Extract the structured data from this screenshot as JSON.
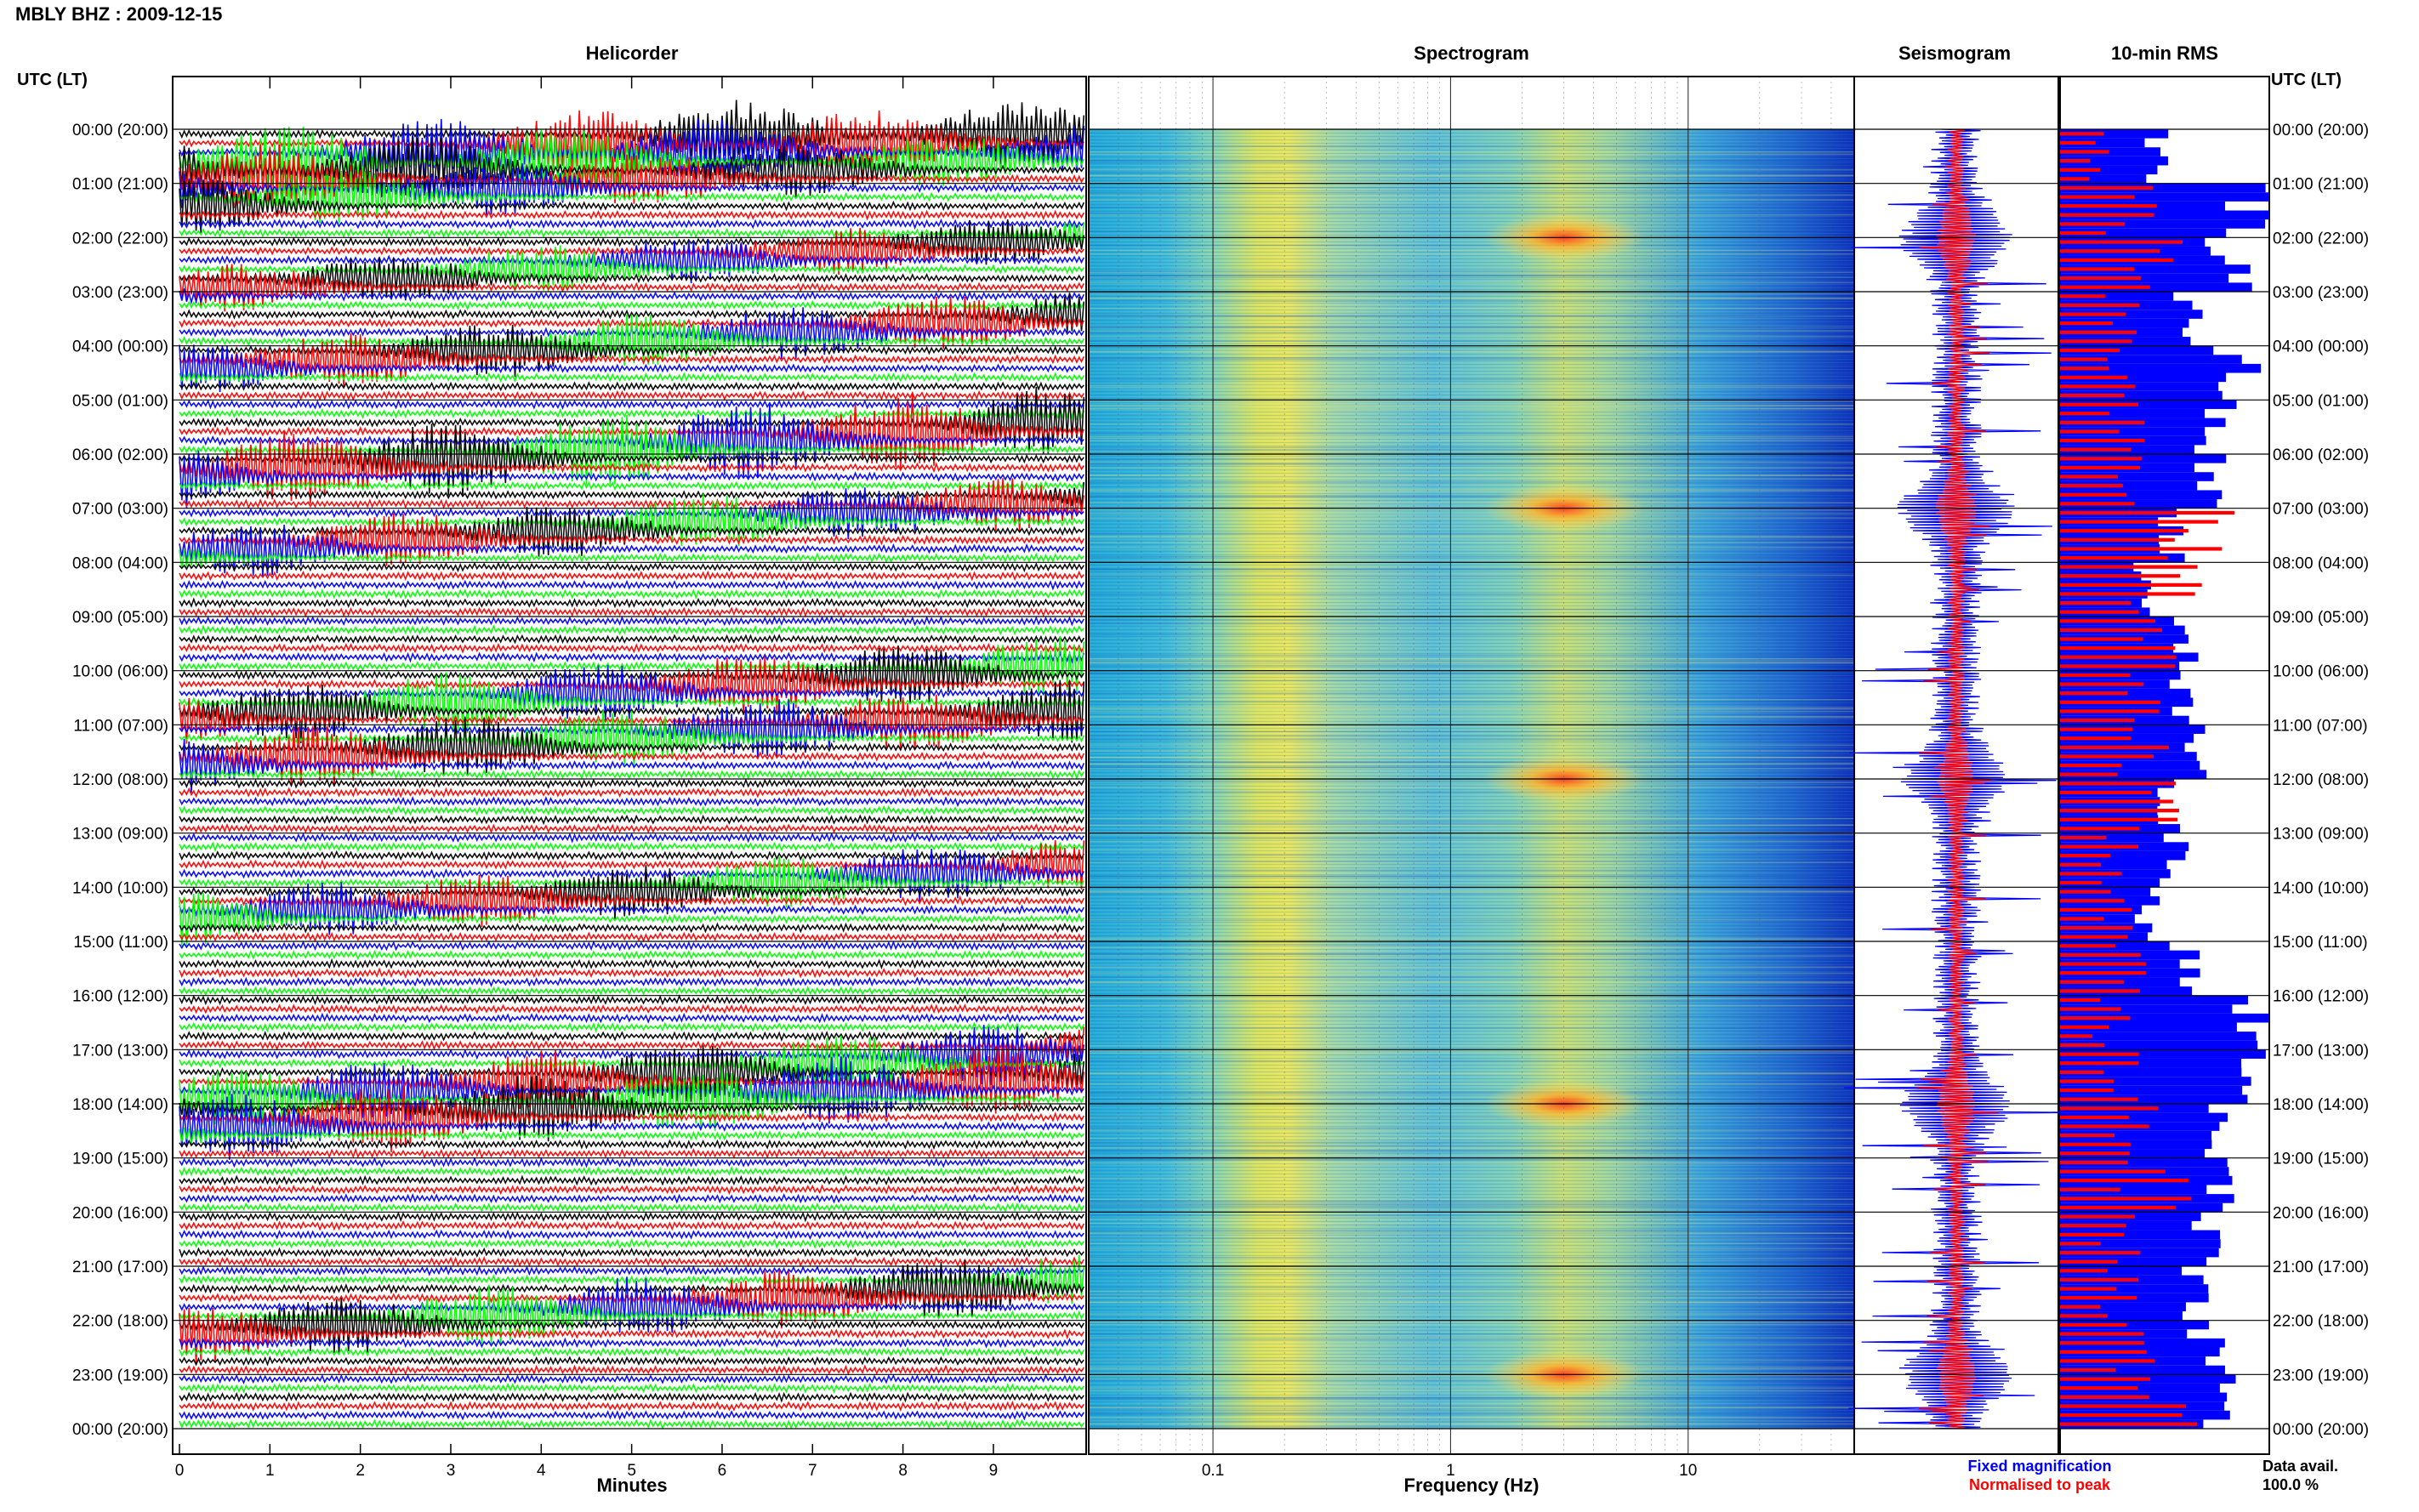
{
  "station_title": "MBLY BHZ : 2009-12-15",
  "panels": {
    "helicorder": "Helicorder",
    "spectrogram": "Spectrogram",
    "seismogram": "Seismogram",
    "rms": "10-min RMS"
  },
  "time_axis": {
    "header": "UTC (LT)",
    "labels": [
      "00:00 (20:00)",
      "01:00 (21:00)",
      "02:00 (22:00)",
      "03:00 (23:00)",
      "04:00 (00:00)",
      "05:00 (01:00)",
      "06:00 (02:00)",
      "07:00 (03:00)",
      "08:00 (04:00)",
      "09:00 (05:00)",
      "10:00 (06:00)",
      "11:00 (07:00)",
      "12:00 (08:00)",
      "13:00 (09:00)",
      "14:00 (10:00)",
      "15:00 (11:00)",
      "16:00 (12:00)",
      "17:00 (13:00)",
      "18:00 (14:00)",
      "19:00 (15:00)",
      "20:00 (16:00)",
      "21:00 (17:00)",
      "22:00 (18:00)",
      "23:00 (19:00)",
      "00:00 (20:00)"
    ]
  },
  "helicorder_axis": {
    "xlabel": "Minutes",
    "ticks": [
      "0",
      "1",
      "2",
      "3",
      "4",
      "5",
      "6",
      "7",
      "8",
      "9"
    ]
  },
  "spectrogram_axis": {
    "xlabel": "Frequency (Hz)",
    "ticks": [
      "0.1",
      "1",
      "10"
    ]
  },
  "legend": {
    "fixed": "Fixed magnification",
    "normalised": "Normalised to peak",
    "fixed_color": "#0000ff",
    "normalised_color": "#ff0000"
  },
  "data_availability": {
    "label": "Data avail.",
    "value": "100.0 %"
  },
  "colors": {
    "trace_cycle": [
      "#000000",
      "#ff0000",
      "#0000ff",
      "#00ff00"
    ],
    "rms_fill": "#0000ff",
    "rms_norm": "#ff0000"
  },
  "chart_data": [
    {
      "type": "line",
      "title": "Helicorder",
      "xlabel": "Minutes",
      "x_range": [
        0,
        10
      ],
      "rows_per_hour": 6,
      "hours": 24,
      "activity_bursts": [
        {
          "hour": 0,
          "minute": 6.2,
          "amplitude": 0.9
        },
        {
          "hour": 0,
          "minute": 9.3,
          "amplitude": 0.9
        },
        {
          "hour": 1,
          "minute": 3.5,
          "amplitude": 0.7
        },
        {
          "hour": 2,
          "minute": 9.0,
          "amplitude": 0.6
        },
        {
          "hour": 4,
          "minute": 3.5,
          "amplitude": 0.7
        },
        {
          "hour": 6,
          "minute": 3.0,
          "amplitude": 1.0
        },
        {
          "hour": 7,
          "minute": 7.5,
          "amplitude": 0.7
        },
        {
          "hour": 10,
          "minute": 8.0,
          "amplitude": 0.8
        },
        {
          "hour": 11,
          "minute": 6.5,
          "amplitude": 0.8
        },
        {
          "hour": 14,
          "minute": 5.0,
          "amplitude": 0.7
        },
        {
          "hour": 17,
          "minute": 9.0,
          "amplitude": 0.8
        },
        {
          "hour": 18,
          "minute": 4.0,
          "amplitude": 0.9
        },
        {
          "hour": 22,
          "minute": 1.8,
          "amplitude": 0.8
        }
      ]
    },
    {
      "type": "heatmap",
      "title": "Spectrogram",
      "xlabel": "Frequency (Hz)",
      "x_scale": "log",
      "x_range": [
        0.03,
        50
      ],
      "energy_bands_hz": [
        0.2,
        3
      ],
      "strong_hours": [
        2,
        7,
        12,
        18,
        23
      ]
    },
    {
      "type": "line",
      "title": "Seismogram",
      "series": [
        {
          "name": "Fixed magnification",
          "color": "#0000ff"
        },
        {
          "name": "Normalised to peak",
          "color": "#ff0000"
        }
      ]
    },
    {
      "type": "bar",
      "title": "10-min RMS",
      "orientation": "horizontal",
      "bins_per_hour": 6,
      "fixed_fraction": [
        0.45,
        0.92,
        0.8,
        0.6,
        0.85,
        0.75,
        0.7,
        0.55,
        0.4,
        0.6,
        0.58,
        0.65,
        0.5,
        0.55,
        0.42,
        0.6,
        0.9,
        0.95,
        0.7,
        0.75,
        0.68,
        0.62,
        0.7,
        0.75
      ],
      "normalised_fraction": [
        0.2,
        0.35,
        0.45,
        0.3,
        0.3,
        0.35,
        0.32,
        0.6,
        0.55,
        0.4,
        0.35,
        0.4,
        0.45,
        0.3,
        0.25,
        0.3,
        0.25,
        0.3,
        0.4,
        0.45,
        0.3,
        0.3,
        0.35,
        0.5
      ]
    }
  ]
}
